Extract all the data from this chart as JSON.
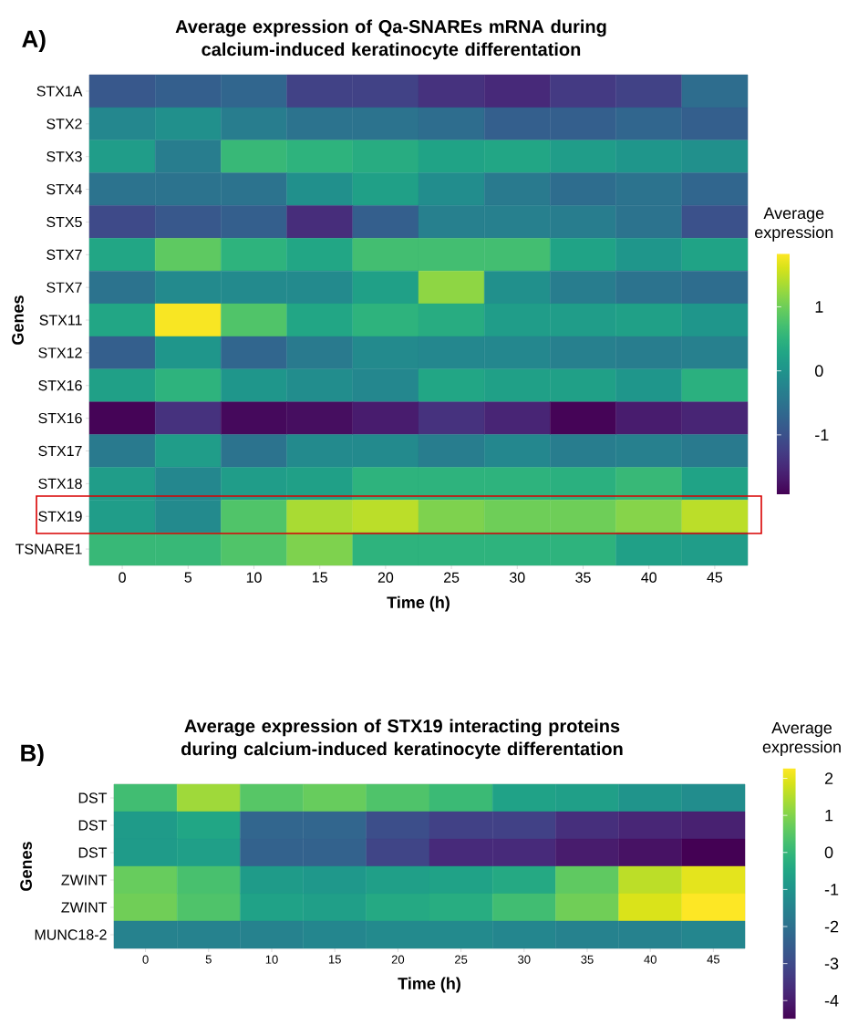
{
  "chart_data": [
    {
      "type": "heatmap",
      "title": "Average expression of Qa-SNAREs mRNA during calcium-induced keratinocyte differentation",
      "xlabel": "Time (h)",
      "ylabel": "Genes",
      "clabel": "Average expression",
      "annotations": [
        "A)"
      ],
      "categories": [
        "0",
        "5",
        "10",
        "15",
        "20",
        "25",
        "30",
        "35",
        "40",
        "45"
      ],
      "y_categories": [
        "STX1A",
        "STX2",
        "STX3",
        "STX4",
        "STX5",
        "STX7",
        "STX7",
        "STX11",
        "STX12",
        "STX16",
        "STX16",
        "STX17",
        "STX18",
        "STX19",
        "TSNARE1"
      ],
      "cells": [
        [
          -0.9,
          -0.8,
          -0.7,
          -1.2,
          -1.2,
          -1.4,
          -1.5,
          -1.3,
          -1.2,
          -0.6
        ],
        [
          -0.2,
          -0.05,
          -0.35,
          -0.5,
          -0.5,
          -0.6,
          -0.8,
          -0.8,
          -0.7,
          -0.8
        ],
        [
          0.15,
          -0.35,
          0.6,
          0.5,
          0.4,
          0.25,
          0.3,
          0.15,
          0.05,
          -0.05
        ],
        [
          -0.5,
          -0.5,
          -0.5,
          -0.05,
          0.2,
          -0.1,
          -0.4,
          -0.6,
          -0.5,
          -0.7
        ],
        [
          -1.1,
          -0.9,
          -0.8,
          -1.45,
          -0.8,
          -0.3,
          -0.3,
          -0.35,
          -0.5,
          -1.0
        ],
        [
          0.3,
          0.9,
          0.5,
          0.3,
          0.7,
          0.7,
          0.7,
          0.25,
          0.05,
          0.25
        ],
        [
          -0.5,
          -0.15,
          -0.15,
          -0.15,
          0.2,
          1.2,
          -0.05,
          -0.35,
          -0.5,
          -0.6
        ],
        [
          0.3,
          1.8,
          0.8,
          0.3,
          0.5,
          0.4,
          0.15,
          0.15,
          0.2,
          0.05
        ],
        [
          -0.8,
          0.05,
          -0.7,
          -0.4,
          -0.15,
          -0.2,
          -0.2,
          -0.3,
          -0.35,
          -0.3
        ],
        [
          0.2,
          0.5,
          0.05,
          -0.1,
          -0.2,
          0.3,
          0.2,
          0.2,
          0.05,
          0.45
        ],
        [
          -1.9,
          -1.4,
          -1.85,
          -1.8,
          -1.65,
          -1.4,
          -1.55,
          -1.9,
          -1.65,
          -1.55
        ],
        [
          -0.4,
          0.15,
          -0.5,
          -0.15,
          -0.15,
          -0.35,
          -0.2,
          -0.35,
          -0.3,
          -0.4
        ],
        [
          0.15,
          -0.2,
          0.15,
          0.2,
          0.5,
          0.5,
          0.5,
          0.45,
          0.6,
          0.25
        ],
        [
          0.15,
          -0.15,
          0.8,
          1.35,
          1.45,
          1.1,
          1.0,
          1.0,
          1.15,
          1.45
        ],
        [
          0.6,
          0.6,
          0.8,
          1.1,
          0.5,
          0.5,
          0.5,
          0.5,
          0.2,
          0.15
        ]
      ],
      "clim": [
        -1.93,
        1.83
      ],
      "cticks": [
        -1,
        0,
        1
      ]
    },
    {
      "type": "heatmap",
      "title": "Average expression of STX19 interacting proteins during calcium-induced keratinocyte differentation",
      "xlabel": "Time (h)",
      "ylabel": "Genes",
      "clabel": "Average expression",
      "annotations": [
        "B)"
      ],
      "categories": [
        "0",
        "5",
        "10",
        "15",
        "20",
        "25",
        "30",
        "35",
        "40",
        "45"
      ],
      "y_categories": [
        "DST",
        "DST",
        "DST",
        "ZWINT",
        "ZWINT",
        "MUNC18-2"
      ],
      "cells": [
        [
          0.2,
          1.3,
          0.5,
          0.7,
          0.4,
          0.1,
          -0.6,
          -0.7,
          -1.0,
          -1.2
        ],
        [
          -0.8,
          -0.5,
          -2.3,
          -2.3,
          -2.9,
          -3.2,
          -3.2,
          -3.6,
          -3.8,
          -3.9
        ],
        [
          -0.8,
          -0.7,
          -2.4,
          -2.4,
          -3.1,
          -3.7,
          -3.7,
          -4.0,
          -4.2,
          -4.5
        ],
        [
          0.7,
          0.3,
          -0.8,
          -0.9,
          -0.7,
          -0.6,
          -0.4,
          0.6,
          1.6,
          2.0
        ],
        [
          0.8,
          0.4,
          -0.6,
          -0.7,
          -0.4,
          -0.3,
          0.2,
          0.8,
          1.9,
          2.27
        ],
        [
          -1.5,
          -1.5,
          -1.5,
          -1.4,
          -1.3,
          -1.3,
          -1.4,
          -1.5,
          -1.5,
          -1.4
        ]
      ],
      "clim": [
        -4.5,
        2.27
      ],
      "cticks": [
        -4,
        -3,
        -2,
        -1,
        0,
        1,
        2
      ]
    }
  ]
}
